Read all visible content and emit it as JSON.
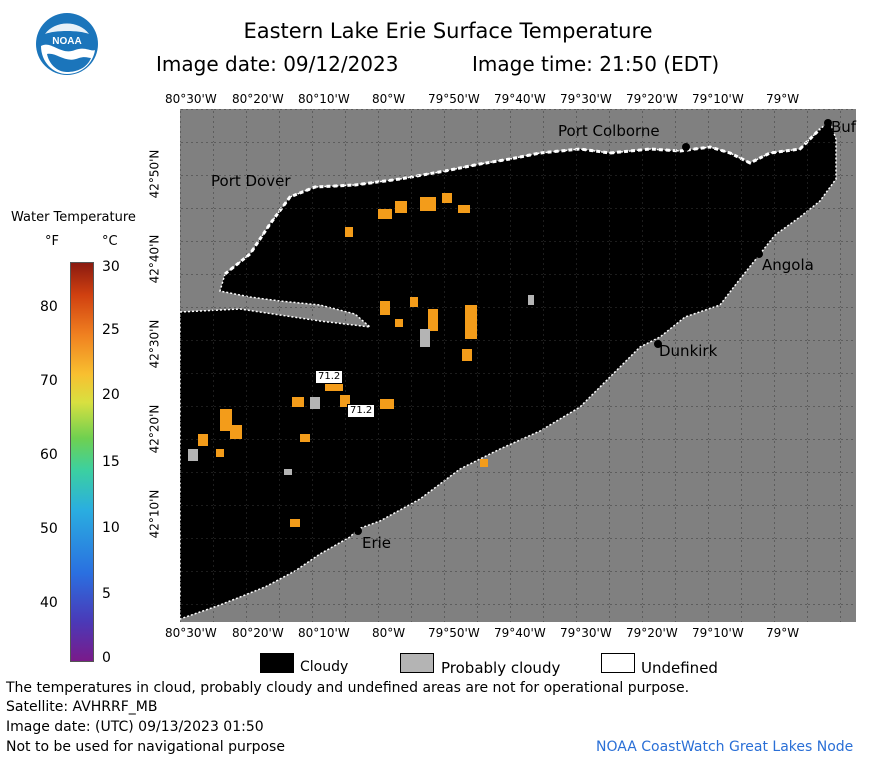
{
  "header": {
    "title": "Eastern Lake Erie Surface Temperature",
    "image_date": "Image date: 09/12/2023",
    "image_time": "Image time: 21:50 (EDT)"
  },
  "map": {
    "lon_ticks": [
      "80°30'W",
      "80°20'W",
      "80°10'W",
      "80°W",
      "79°50'W",
      "79°40'W",
      "79°30'W",
      "79°20'W",
      "79°10'W",
      "79°W"
    ],
    "lat_ticks": [
      "42°50'N",
      "42°40'N",
      "42°30'N",
      "42°20'N",
      "42°10'N"
    ],
    "places": {
      "port_colborne": "Port Colborne",
      "port_dover": "Port Dover",
      "buffalo": "Buf",
      "angola": "Angola",
      "dunkirk": "Dunkirk",
      "erie": "Erie"
    },
    "samples": [
      "71.2",
      "71.2"
    ],
    "colors": {
      "land": "#808080",
      "cloud": "#000000",
      "grid": "#4a4a4a",
      "warm_water": "#f39c1a",
      "probably_cloudy": "#b4b4b4"
    }
  },
  "colorbar": {
    "title": "Water Temperature",
    "unit_f": "°F",
    "unit_c": "°C",
    "f_labels": [
      "80",
      "70",
      "60",
      "50",
      "40"
    ],
    "c_labels": [
      "30",
      "25",
      "20",
      "15",
      "10",
      "5",
      "0"
    ]
  },
  "legend": {
    "cloudy": "Cloudy",
    "probably_cloudy": "Probably cloudy",
    "undefined": "Undefined"
  },
  "footer": {
    "note": "The temperatures in cloud, probably cloudy and undefined areas are not for operational purpose.",
    "satellite": "Satellite: AVHRRF_MB",
    "utc_date": "Image date: (UTC) 09/13/2023  01:50",
    "nav": "Not to be used for navigational purpose",
    "source": "NOAA CoastWatch Great Lakes Node"
  }
}
